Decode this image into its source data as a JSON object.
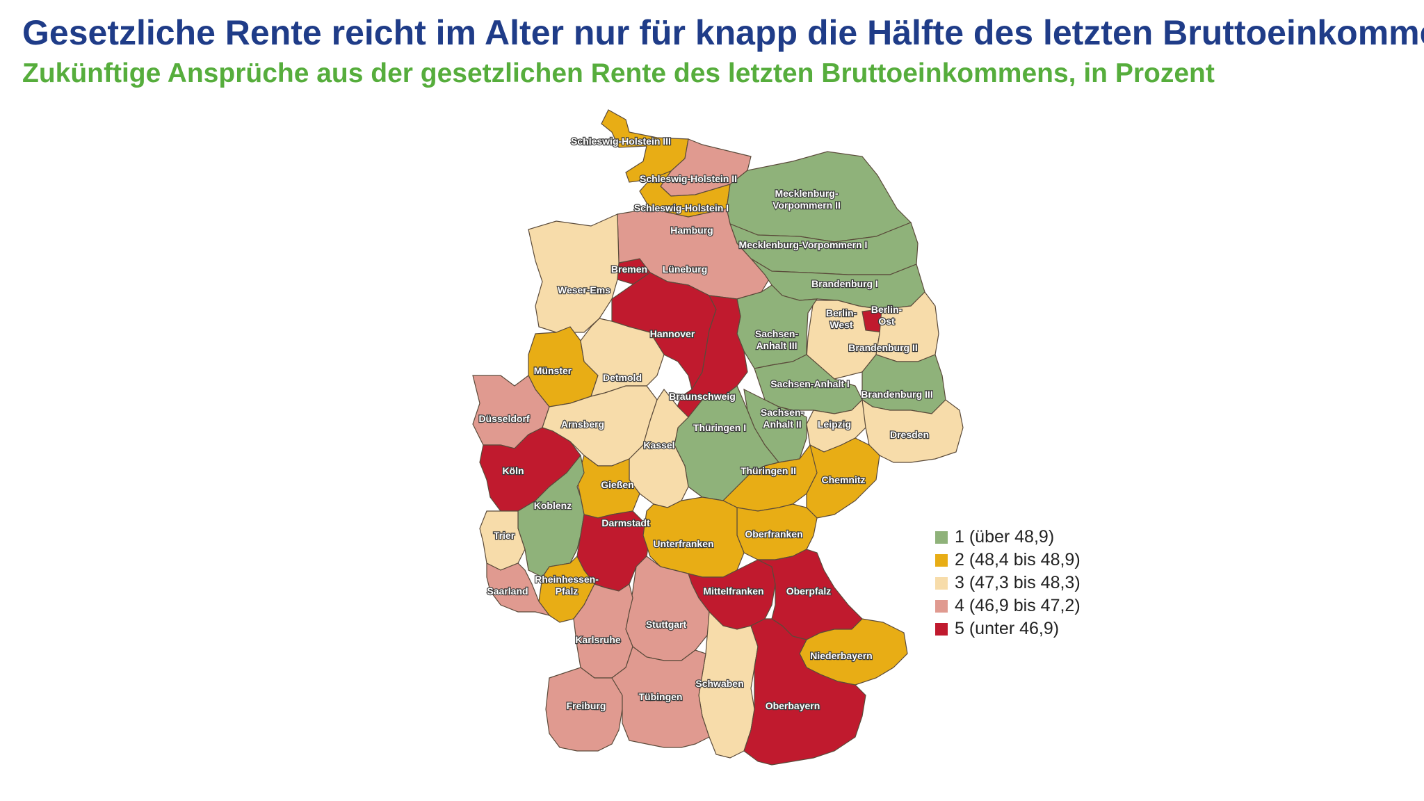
{
  "header": {
    "title": "Gesetzliche Rente reicht im Alter nur für knapp die Hälfte des letzten Bruttoeinkommens",
    "subtitle": "Zukünftige Ansprüche aus der gesetzlichen Rente des letzten Bruttoeinkommens, in Prozent"
  },
  "legend": [
    {
      "class": 1,
      "label": "1 (über 48,9)",
      "color": "#8fb27a"
    },
    {
      "class": 2,
      "label": "2 (48,4 bis 48,9)",
      "color": "#e8ad15"
    },
    {
      "class": 3,
      "label": "3 (47,3 bis 48,3)",
      "color": "#f7dcaa"
    },
    {
      "class": 4,
      "label": "4 (46,9 bis 47,2)",
      "color": "#e09a90"
    },
    {
      "class": 5,
      "label": "5 (unter 46,9)",
      "color": "#c01a2e"
    }
  ],
  "regions": [
    {
      "name": "Schleswig-Holstein III",
      "class": 2
    },
    {
      "name": "Schleswig-Holstein II",
      "class": 4
    },
    {
      "name": "Schleswig-Holstein I",
      "class": 2
    },
    {
      "name": "Hamburg",
      "class": 5
    },
    {
      "name": "Mecklenburg-Vorpommern II",
      "class": 1
    },
    {
      "name": "Mecklenburg-Vorpommern I",
      "class": 1
    },
    {
      "name": "Bremen",
      "class": 5
    },
    {
      "name": "Lüneburg",
      "class": 4
    },
    {
      "name": "Weser-Ems",
      "class": 3
    },
    {
      "name": "Brandenburg I",
      "class": 1
    },
    {
      "name": "Berlin-West",
      "class": 3
    },
    {
      "name": "Berlin-Ost",
      "class": 5
    },
    {
      "name": "Hannover",
      "class": 5
    },
    {
      "name": "Sachsen-Anhalt III",
      "class": 1
    },
    {
      "name": "Brandenburg II",
      "class": 3
    },
    {
      "name": "Münster",
      "class": 2
    },
    {
      "name": "Detmold",
      "class": 3
    },
    {
      "name": "Braunschweig",
      "class": 5
    },
    {
      "name": "Sachsen-Anhalt I",
      "class": 1
    },
    {
      "name": "Brandenburg III",
      "class": 1
    },
    {
      "name": "Düsseldorf",
      "class": 4
    },
    {
      "name": "Arnsberg",
      "class": 3
    },
    {
      "name": "Sachsen-Anhalt II",
      "class": 1
    },
    {
      "name": "Thüringen I",
      "class": 1
    },
    {
      "name": "Leipzig",
      "class": 3
    },
    {
      "name": "Dresden",
      "class": 3
    },
    {
      "name": "Kassel",
      "class": 3
    },
    {
      "name": "Köln",
      "class": 5
    },
    {
      "name": "Thüringen II",
      "class": 2
    },
    {
      "name": "Chemnitz",
      "class": 2
    },
    {
      "name": "Gießen",
      "class": 2
    },
    {
      "name": "Koblenz",
      "class": 1
    },
    {
      "name": "Darmstadt",
      "class": 5
    },
    {
      "name": "Oberfranken",
      "class": 2
    },
    {
      "name": "Unterfranken",
      "class": 2
    },
    {
      "name": "Trier",
      "class": 3
    },
    {
      "name": "Rheinhessen-Pfalz",
      "class": 2
    },
    {
      "name": "Mittelfranken",
      "class": 5
    },
    {
      "name": "Oberpfalz",
      "class": 5
    },
    {
      "name": "Saarland",
      "class": 4
    },
    {
      "name": "Stuttgart",
      "class": 4
    },
    {
      "name": "Karlsruhe",
      "class": 4
    },
    {
      "name": "Niederbayern",
      "class": 2
    },
    {
      "name": "Schwaben",
      "class": 3
    },
    {
      "name": "Freiburg",
      "class": 4
    },
    {
      "name": "Tübingen",
      "class": 4
    },
    {
      "name": "Oberbayern",
      "class": 5
    }
  ]
}
